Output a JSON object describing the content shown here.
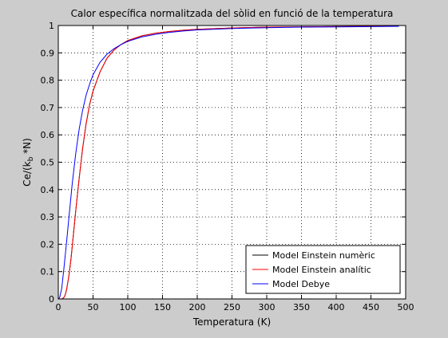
{
  "chart_data": {
    "type": "line",
    "title": "Calor específica normalitzada del sòlid en funció de la temperatura",
    "xlabel": "Temperatura (K)",
    "ylabel_main": "Ce/(k",
    "ylabel_sub": "b",
    "ylabel_tail": " *N)",
    "xlim": [
      0,
      500
    ],
    "ylim": [
      0,
      1
    ],
    "xticks": [
      0,
      50,
      100,
      150,
      200,
      250,
      300,
      350,
      400,
      450,
      500
    ],
    "yticks": [
      0,
      0.1,
      0.2,
      0.3,
      0.4,
      0.5,
      0.6,
      0.7,
      0.8,
      0.9,
      1
    ],
    "grid": true,
    "legend_position": "bottom-right",
    "series": [
      {
        "name": "Model Einstein numèric",
        "color": "#000000",
        "x": [
          0,
          5,
          8,
          10,
          12,
          15,
          18,
          20,
          25,
          30,
          35,
          40,
          45,
          50,
          60,
          70,
          80,
          90,
          100,
          120,
          140,
          160,
          180,
          200,
          250,
          300,
          350,
          400,
          450,
          490
        ],
        "y": [
          0,
          0.0,
          0.005,
          0.015,
          0.035,
          0.08,
          0.14,
          0.19,
          0.32,
          0.44,
          0.55,
          0.64,
          0.71,
          0.76,
          0.83,
          0.88,
          0.91,
          0.93,
          0.945,
          0.962,
          0.972,
          0.978,
          0.983,
          0.986,
          0.991,
          0.994,
          0.995,
          0.996,
          0.997,
          0.997
        ]
      },
      {
        "name": "Model Einstein analític",
        "color": "#ff0000",
        "x": [
          0,
          5,
          8,
          10,
          12,
          15,
          18,
          20,
          25,
          30,
          35,
          40,
          45,
          50,
          60,
          70,
          80,
          90,
          100,
          120,
          140,
          160,
          180,
          200,
          250,
          300,
          350,
          400,
          450,
          490
        ],
        "y": [
          0,
          0.0,
          0.005,
          0.015,
          0.035,
          0.08,
          0.14,
          0.19,
          0.32,
          0.44,
          0.55,
          0.64,
          0.71,
          0.76,
          0.83,
          0.88,
          0.91,
          0.93,
          0.945,
          0.962,
          0.972,
          0.978,
          0.983,
          0.986,
          0.991,
          0.994,
          0.995,
          0.996,
          0.997,
          0.997
        ]
      },
      {
        "name": "Model Debye",
        "color": "#0000ff",
        "x": [
          0,
          2,
          5,
          8,
          10,
          12,
          15,
          20,
          25,
          30,
          35,
          40,
          45,
          50,
          60,
          70,
          80,
          90,
          100,
          120,
          140,
          160,
          180,
          200,
          250,
          300,
          350,
          400,
          450,
          490
        ],
        "y": [
          0,
          0.005,
          0.04,
          0.11,
          0.16,
          0.21,
          0.29,
          0.42,
          0.53,
          0.62,
          0.69,
          0.745,
          0.785,
          0.82,
          0.865,
          0.895,
          0.915,
          0.93,
          0.942,
          0.958,
          0.968,
          0.975,
          0.98,
          0.984,
          0.989,
          0.992,
          0.994,
          0.995,
          0.996,
          0.997
        ]
      }
    ]
  }
}
